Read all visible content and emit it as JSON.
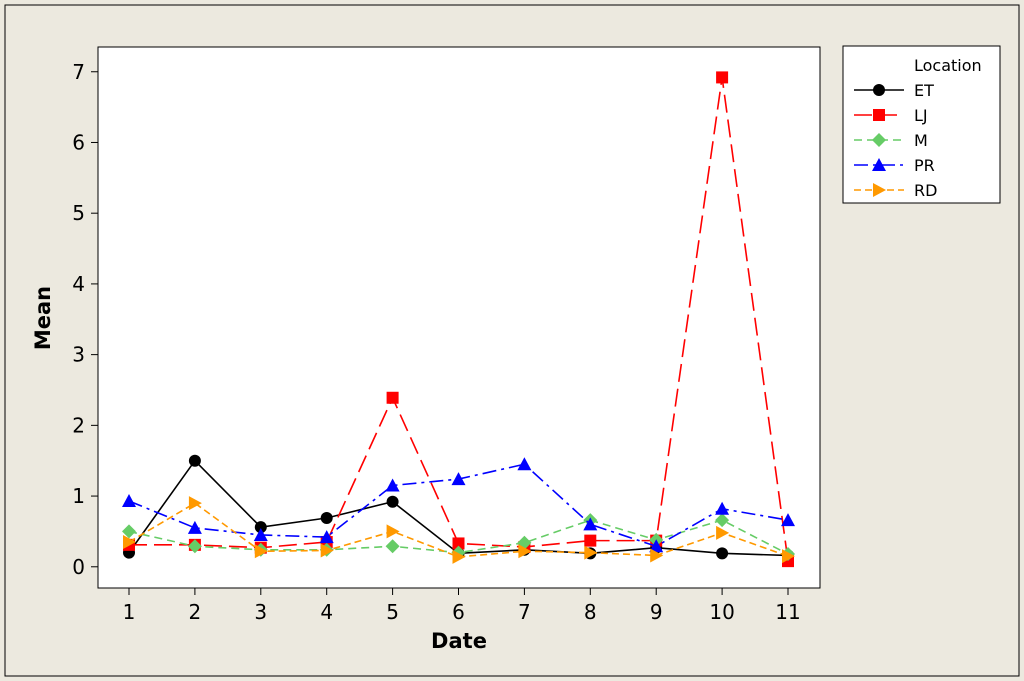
{
  "chart_data": {
    "type": "line",
    "xlabel": "Date",
    "ylabel": "Mean",
    "categories": [
      "1",
      "2",
      "3",
      "4",
      "5",
      "6",
      "7",
      "8",
      "9",
      "10",
      "11"
    ],
    "yticks": [
      "0",
      "1",
      "2",
      "3",
      "4",
      "5",
      "6",
      "7"
    ],
    "ylim": [
      -0.3,
      7.35
    ],
    "grid": false,
    "legend": {
      "title": "Location",
      "placement": "right"
    },
    "series": [
      {
        "name": "ET",
        "color": "#000000",
        "marker": "circle",
        "dash": "solid",
        "values": [
          0.2,
          1.5,
          0.56,
          0.69,
          0.92,
          0.19,
          0.24,
          0.19,
          0.27,
          0.19,
          0.16
        ]
      },
      {
        "name": "LJ",
        "color": "#ff0000",
        "marker": "square",
        "dash": "dashed-long",
        "values": [
          0.31,
          0.31,
          0.27,
          0.35,
          2.39,
          0.33,
          0.28,
          0.37,
          0.37,
          6.92,
          0.08
        ]
      },
      {
        "name": "M",
        "color": "#66cc66",
        "marker": "diamond",
        "dash": "dashed",
        "values": [
          0.5,
          0.29,
          0.24,
          0.24,
          0.29,
          0.2,
          0.34,
          0.66,
          0.38,
          0.66,
          0.18
        ]
      },
      {
        "name": "PR",
        "color": "#0000ff",
        "marker": "triangle-up",
        "dash": "dash-dot",
        "values": [
          0.93,
          0.55,
          0.45,
          0.42,
          1.15,
          1.24,
          1.45,
          0.6,
          0.29,
          0.82,
          0.66
        ]
      },
      {
        "name": "RD",
        "color": "#ff9900",
        "marker": "triangle-right",
        "dash": "dashed-short",
        "values": [
          0.35,
          0.9,
          0.22,
          0.23,
          0.5,
          0.14,
          0.22,
          0.2,
          0.16,
          0.48,
          0.15
        ]
      }
    ]
  }
}
